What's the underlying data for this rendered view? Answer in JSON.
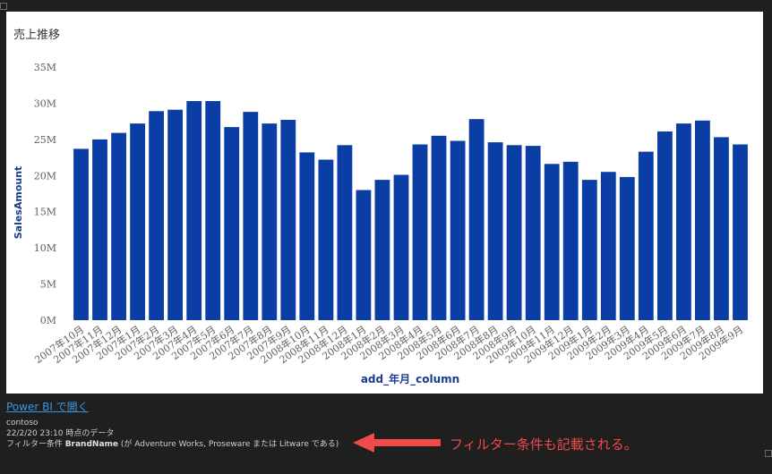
{
  "chart_data": {
    "type": "bar",
    "title": "売上推移",
    "xlabel": "add_年月_column",
    "ylabel": "SalesAmount",
    "ylim": [
      0,
      35
    ],
    "y_ticks": [
      "0M",
      "5M",
      "10M",
      "15M",
      "20M",
      "25M",
      "30M",
      "35M"
    ],
    "grid": false,
    "bar_color": "#0b3ea5",
    "categories": [
      "2007年10月",
      "2007年11月",
      "2007年12月",
      "2007年1月",
      "2007年2月",
      "2007年3月",
      "2007年4月",
      "2007年5月",
      "2007年6月",
      "2007年7月",
      "2007年8月",
      "2007年9月",
      "2008年10月",
      "2008年11月",
      "2008年12月",
      "2008年1月",
      "2008年2月",
      "2008年3月",
      "2008年4月",
      "2008年5月",
      "2008年6月",
      "2008年7月",
      "2008年8月",
      "2008年9月",
      "2009年10月",
      "2009年11月",
      "2009年12月",
      "2009年1月",
      "2009年2月",
      "2009年3月",
      "2009年4月",
      "2009年5月",
      "2009年6月",
      "2009年7月",
      "2009年8月",
      "2009年9月"
    ],
    "series": [
      {
        "values": [
          23.7,
          25.0,
          25.9,
          27.2,
          28.9,
          29.1,
          30.3,
          30.3,
          26.7,
          28.8,
          27.2,
          27.7,
          23.2,
          22.2,
          24.2,
          18.0,
          19.4,
          20.1,
          24.3,
          25.5,
          24.8,
          27.8,
          24.6,
          24.2,
          24.1,
          21.6,
          21.9,
          19.4,
          20.5,
          19.8,
          23.3,
          26.1,
          27.2,
          27.6,
          25.3,
          24.3
        ]
      }
    ]
  },
  "footer": {
    "open_link": "Power BI で開く",
    "org": "contoso",
    "timestamp": "22/2/20 23:10 時点のデータ",
    "filter_prefix": "フィルター条件 ",
    "filter_field": "BrandName",
    "filter_rest": " (が Adventure Works, Proseware または Litware である)"
  },
  "annotation": {
    "text": "フィルター条件も記載される。",
    "color": "#f04a4a"
  }
}
